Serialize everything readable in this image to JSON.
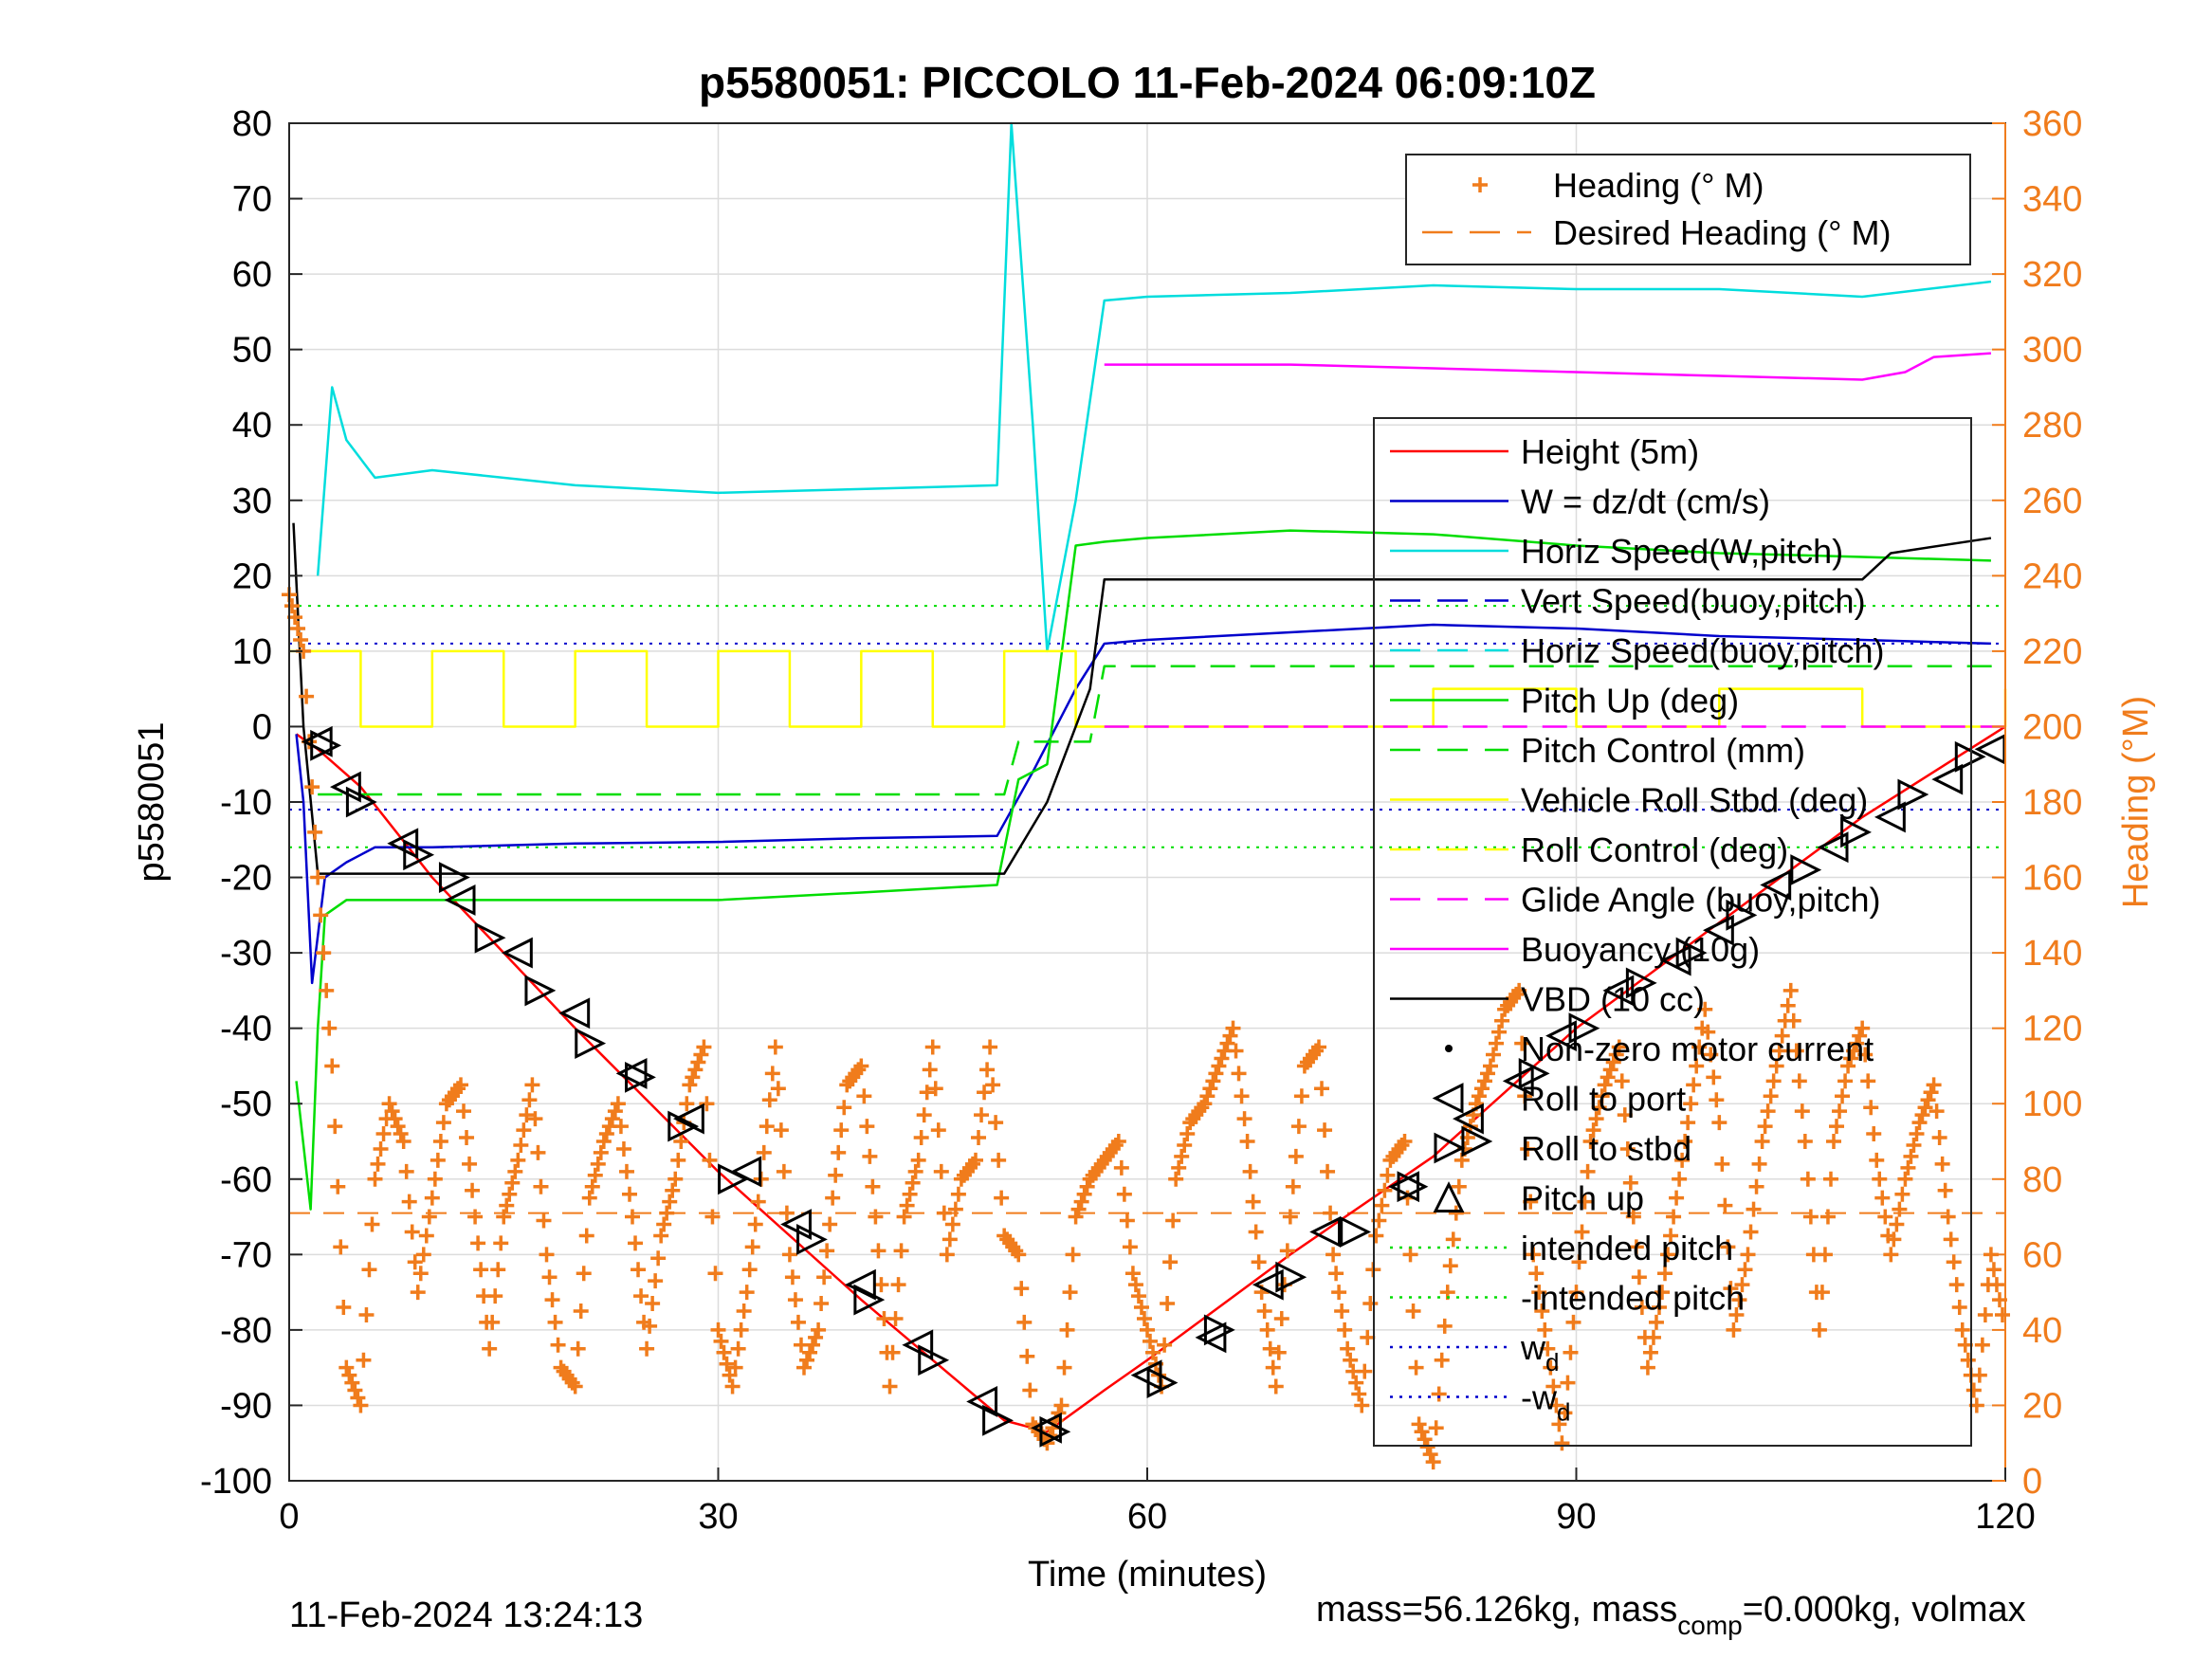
{
  "chart_data": {
    "type": "line",
    "title": "p5580051: PICCOLO 11-Feb-2024 06:09:10Z",
    "xlabel": "Time (minutes)",
    "ylabel": "p5580051",
    "y2label": "Heading (°M)",
    "xlim": [
      0,
      120
    ],
    "ylim": [
      -100,
      80
    ],
    "y2lim": [
      0,
      360
    ],
    "xticks": [
      0,
      30,
      60,
      90,
      120
    ],
    "yticks": [
      80,
      70,
      60,
      50,
      40,
      30,
      20,
      10,
      0,
      -10,
      -20,
      -30,
      -40,
      -50,
      -60,
      -70,
      -80,
      -90,
      -100
    ],
    "y2ticks": [
      360,
      340,
      320,
      300,
      280,
      260,
      240,
      220,
      200,
      180,
      160,
      140,
      120,
      100,
      80,
      60,
      40,
      20,
      0
    ],
    "grid": true,
    "footer_left": "11-Feb-2024 13:24:13",
    "footer_right_pre": "mass=56.126kg, mass",
    "footer_right_sub": "comp",
    "footer_right_post": "=0.000kg, volmax",
    "legend_heading": [
      {
        "name": "Heading (° M)",
        "color": "#f07c1c",
        "style": "plus"
      },
      {
        "name": "Desired Heading (° M)",
        "color": "#f07c1c",
        "style": "dash"
      }
    ],
    "legend_main": [
      {
        "name": "Height (5m)",
        "color": "#ff0000",
        "style": "solid"
      },
      {
        "name": "W = dz/dt (cm/s)",
        "color": "#0000cc",
        "style": "solid"
      },
      {
        "name": "Horiz Speed(W,pitch)",
        "color": "#00dddd",
        "style": "solid"
      },
      {
        "name": "Vert Speed(buoy,pitch)",
        "color": "#0000cc",
        "style": "dash"
      },
      {
        "name": "Horiz Speed(buoy,pitch)",
        "color": "#00dddd",
        "style": "dash"
      },
      {
        "name": "Pitch Up (deg)",
        "color": "#00dd00",
        "style": "solid"
      },
      {
        "name": "Pitch Control (mm)",
        "color": "#00dd00",
        "style": "dash"
      },
      {
        "name": "Vehicle Roll Stbd (deg)",
        "color": "#ffff00",
        "style": "solid"
      },
      {
        "name": "Roll Control (deg)",
        "color": "#ffff00",
        "style": "dash"
      },
      {
        "name": "Glide Angle (buoy,pitch)",
        "color": "#ff00ff",
        "style": "dash"
      },
      {
        "name": "Buoyancy (10g)",
        "color": "#ff00ff",
        "style": "solid"
      },
      {
        "name": "VBD (10 cc)",
        "color": "#000000",
        "style": "solid"
      },
      {
        "name": "Non-zero motor current",
        "color": "#000000",
        "style": "dot"
      },
      {
        "name": "Roll to port",
        "color": "#000000",
        "style": "tri-left"
      },
      {
        "name": "Roll to stbd",
        "color": "#000000",
        "style": "tri-right"
      },
      {
        "name": "Pitch up",
        "color": "#000000",
        "style": "tri-up"
      },
      {
        "name": "intended pitch",
        "color": "#00dd00",
        "style": "dotted"
      },
      {
        "name": "-intended pitch",
        "color": "#00dd00",
        "style": "dotted"
      },
      {
        "name": "w",
        "sub": "d",
        "color": "#0000cc",
        "style": "dotted"
      },
      {
        "name": "-w",
        "sub": "d",
        "color": "#0000cc",
        "style": "dotted"
      }
    ],
    "reference_lines": {
      "intended_pitch": 16,
      "neg_intended_pitch": -16,
      "w_d": 11,
      "neg_w_d": -11,
      "desired_heading_deg": 71
    },
    "series": [
      {
        "name": "Height (5m)",
        "x": [
          0.5,
          2,
          5,
          10,
          20,
          30,
          40,
          50,
          53,
          57,
          60,
          70,
          80,
          90,
          100,
          110,
          120
        ],
        "y": [
          -1,
          -3,
          -8,
          -20,
          -40,
          -59,
          -76,
          -92,
          -93.5,
          -88,
          -84,
          -70,
          -57,
          -40,
          -26,
          -12,
          0
        ]
      },
      {
        "name": "W = dz/dt (cm/s)",
        "x": [
          0.5,
          1,
          1.6,
          2.5,
          4,
          6,
          10,
          20,
          30,
          40,
          49.5,
          52,
          55,
          57,
          60,
          70,
          80,
          90,
          100,
          110,
          119
        ],
        "y": [
          -1,
          -10,
          -34,
          -20,
          -18,
          -16,
          -16,
          -15.5,
          -15.3,
          -14.8,
          -14.5,
          -6,
          5,
          11,
          11.5,
          12.5,
          13.5,
          13,
          12,
          11.5,
          11
        ]
      },
      {
        "name": "Horiz Speed(W,pitch)",
        "x": [
          2,
          3,
          4,
          6,
          10,
          20,
          30,
          40,
          49.5,
          50.5,
          52,
          53,
          55,
          57,
          60,
          70,
          80,
          90,
          100,
          110,
          119
        ],
        "y": [
          20,
          45,
          38,
          33,
          34,
          32,
          31,
          31.5,
          32,
          80,
          40,
          10,
          30,
          56.5,
          57,
          57.5,
          58.5,
          58,
          58,
          57,
          59
        ]
      },
      {
        "name": "Pitch Up (deg)",
        "x": [
          0.5,
          1.5,
          2,
          2.5,
          4,
          10,
          20,
          30,
          40,
          49.5,
          51,
          53,
          55,
          57,
          60,
          70,
          80,
          90,
          100,
          110,
          119
        ],
        "y": [
          -47,
          -64,
          -40,
          -25,
          -23,
          -23,
          -23,
          -23,
          -22,
          -21,
          -7,
          -5,
          24,
          24.5,
          25,
          26,
          25.5,
          24,
          23,
          22.5,
          22
        ]
      },
      {
        "name": "Pitch Control (mm)",
        "x": [
          2,
          5,
          50,
          51,
          56,
          57,
          60,
          120
        ],
        "y": [
          -9,
          -9,
          -9,
          -2,
          -2,
          8,
          8,
          8
        ]
      },
      {
        "name": "Vehicle Roll Stbd (deg)",
        "x": [
          0,
          5,
          10,
          15,
          20,
          25,
          30,
          35,
          40,
          45,
          50,
          55,
          60,
          70,
          80,
          90,
          100,
          110,
          120
        ],
        "y": [
          10,
          0,
          10,
          0,
          10,
          0,
          10,
          0,
          10,
          0,
          10,
          0,
          0,
          0,
          5,
          0,
          5,
          0,
          5
        ]
      },
      {
        "name": "Glide Angle (buoy,pitch)",
        "x": [
          57,
          120
        ],
        "y": [
          0,
          0
        ]
      },
      {
        "name": "Buoyancy (10g)",
        "x": [
          57,
          70,
          80,
          90,
          100,
          110,
          113,
          115,
          119
        ],
        "y": [
          48,
          48,
          47.5,
          47,
          46.5,
          46,
          47,
          49,
          49.5
        ]
      },
      {
        "name": "VBD (10 cc)",
        "x": [
          0.3,
          1,
          2,
          5,
          50,
          53,
          56,
          57,
          60,
          110,
          112,
          119
        ],
        "y": [
          27,
          0,
          -19.5,
          -19.5,
          -19.5,
          -10,
          5,
          19.5,
          19.5,
          19.5,
          23,
          25
        ]
      }
    ],
    "heading_samples": {
      "name": "Heading (° M)",
      "x": [
        0,
        1,
        2,
        3,
        4,
        5,
        6,
        7,
        8,
        9,
        10,
        11,
        12,
        13,
        14,
        15,
        16,
        17,
        18,
        19,
        20,
        21,
        22,
        23,
        24,
        25,
        26,
        27,
        28,
        29,
        30,
        31,
        32,
        33,
        34,
        35,
        36,
        37,
        38,
        39,
        40,
        41,
        42,
        43,
        44,
        45,
        46,
        47,
        48,
        49,
        50,
        51,
        52,
        53,
        54,
        55,
        56,
        57,
        58,
        59,
        60,
        61,
        62,
        63,
        64,
        65,
        66,
        67,
        68,
        69,
        70,
        71,
        72,
        73,
        74,
        75,
        76,
        77,
        78,
        79,
        80,
        81,
        82,
        83,
        84,
        85,
        86,
        87,
        88,
        89,
        90,
        91,
        92,
        93,
        94,
        95,
        96,
        97,
        98,
        99,
        100,
        101,
        102,
        103,
        104,
        105,
        106,
        107,
        108,
        109,
        110,
        111,
        112,
        113,
        114,
        115,
        116,
        117,
        118,
        119,
        120
      ],
      "y": [
        235,
        220,
        160,
        110,
        30,
        20,
        80,
        100,
        90,
        50,
        75,
        100,
        105,
        70,
        35,
        70,
        85,
        105,
        60,
        30,
        25,
        75,
        90,
        100,
        70,
        35,
        65,
        80,
        105,
        115,
        40,
        25,
        50,
        80,
        115,
        60,
        30,
        40,
        75,
        105,
        110,
        70,
        25,
        70,
        85,
        115,
        60,
        80,
        85,
        115,
        65,
        60,
        15,
        10,
        20,
        70,
        80,
        85,
        90,
        55,
        40,
        25,
        80,
        95,
        100,
        110,
        120,
        90,
        50,
        25,
        70,
        110,
        115,
        60,
        35,
        20,
        65,
        85,
        90,
        15,
        5,
        50,
        85,
        100,
        110,
        125,
        130,
        60,
        35,
        10,
        50,
        90,
        105,
        115,
        70,
        30,
        50,
        75,
        100,
        125,
        95,
        40,
        60,
        90,
        110,
        130,
        90,
        40,
        90,
        110,
        120,
        85,
        60,
        80,
        95,
        105,
        70,
        40,
        20,
        60,
        40
      ]
    },
    "roll_to_port_markers": {
      "x": [
        2,
        4,
        8,
        12,
        16,
        20,
        24,
        28,
        32,
        35.5,
        40,
        44,
        48.5,
        53,
        60,
        64.5,
        68.5,
        72.5,
        78,
        82.5,
        86,
        89,
        93,
        97,
        100,
        104,
        108,
        112,
        116,
        119
      ],
      "y": [
        -2,
        -8,
        -15.5,
        -23,
        -30,
        -38,
        -46,
        -52,
        -59,
        -66,
        -74,
        -82,
        -89.5,
        -93,
        -86,
        -81,
        -74,
        -67,
        -61,
        -52,
        -47,
        -41,
        -35,
        -31,
        -27,
        -21,
        -16,
        -12,
        -7,
        -3
      ]
    },
    "roll_to_stbd_markers": {
      "x": [
        2.5,
        5,
        9,
        11.5,
        14,
        17.5,
        21,
        24.5,
        27.5,
        31,
        36.5,
        40.5,
        45,
        49.5,
        53.5,
        61,
        65,
        70,
        74.5,
        78.5,
        83,
        87,
        90.5,
        94.5,
        98,
        101.5,
        106,
        109.5,
        113.5,
        117.5
      ],
      "y": [
        -2.5,
        -10,
        -17,
        -20,
        -28,
        -35,
        -42,
        -46.5,
        -53,
        -60,
        -68,
        -76,
        -84,
        -92,
        -93.5,
        -87,
        -80,
        -73,
        -67,
        -61,
        -55,
        -46,
        -40,
        -34,
        -30,
        -25,
        -19,
        -14,
        -9,
        -4
      ]
    }
  }
}
